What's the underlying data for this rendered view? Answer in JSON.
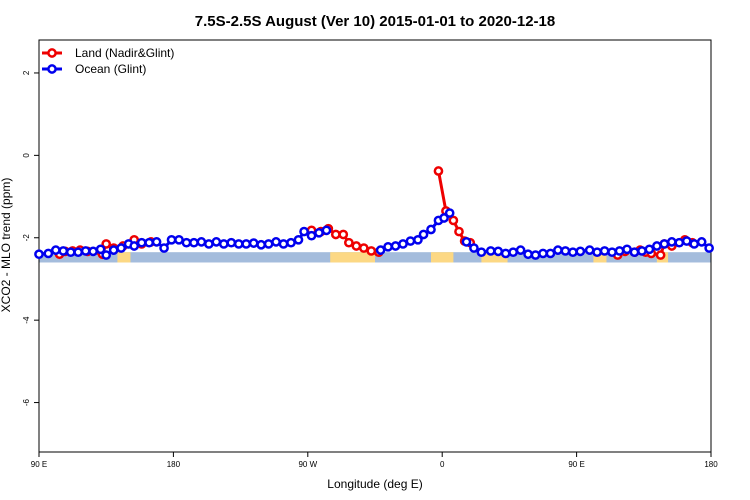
{
  "chart_data": {
    "type": "line",
    "title": "7.5S-2.5S August (Ver 10)   2015-01-01 to 2020-12-18",
    "xlabel": "Longitude (deg E)",
    "ylabel": "XCO2 - MLO trend (ppm)",
    "xlim": [
      90,
      450
    ],
    "ylim": [
      -7.2,
      2.8
    ],
    "x_ticks": [
      {
        "value": 90,
        "label": "90 E"
      },
      {
        "value": 162,
        "label": "180"
      },
      {
        "value": 234,
        "label": "90 W"
      },
      {
        "value": 306,
        "label": "0"
      },
      {
        "value": 378,
        "label": "90 E"
      },
      {
        "value": 450,
        "label": "180"
      }
    ],
    "y_ticks": [
      {
        "value": 2,
        "label": "2"
      },
      {
        "value": 0,
        "label": "0"
      },
      {
        "value": -2,
        "label": "-2"
      },
      {
        "value": -4,
        "label": "-4"
      },
      {
        "value": -6,
        "label": "-6"
      }
    ],
    "legend": [
      {
        "name": "Land (Nadir&Glint)",
        "color": "#ee0000"
      },
      {
        "name": "Ocean (Glint)",
        "color": "#0000ee"
      }
    ],
    "map_band": {
      "y_range": [
        -2.6,
        -2.35
      ],
      "ocean_color": "#a4bcdc",
      "land_color": "#fcd884",
      "land_spans": [
        [
          132,
          139
        ],
        [
          246,
          270
        ],
        [
          300,
          312
        ],
        [
          327,
          341
        ],
        [
          387,
          394
        ],
        [
          421,
          427
        ]
      ]
    },
    "series": [
      {
        "name": "Land (Nadir&Glint)",
        "color": "#ee0000",
        "segments": [
          [
            [
              101,
              -2.4
            ],
            [
              104,
              -2.33
            ],
            [
              108,
              -2.32
            ],
            [
              112,
              -2.3
            ],
            [
              116,
              -2.33
            ],
            [
              124,
              -2.4
            ],
            [
              126,
              -2.15
            ],
            [
              130,
              -2.25
            ],
            [
              135,
              -2.2
            ],
            [
              141,
              -2.05
            ],
            [
              145,
              -2.15
            ],
            [
              150,
              -2.1
            ]
          ],
          [
            [
              236,
              -1.82
            ],
            [
              241,
              -1.85
            ],
            [
              245,
              -1.78
            ],
            [
              249,
              -1.92
            ],
            [
              253,
              -1.92
            ],
            [
              256,
              -2.12
            ],
            [
              260,
              -2.2
            ],
            [
              264,
              -2.25
            ],
            [
              268,
              -2.32
            ],
            [
              272,
              -2.35
            ]
          ],
          [
            [
              304,
              -0.38
            ],
            [
              308,
              -1.35
            ],
            [
              312,
              -1.58
            ],
            [
              315,
              -1.85
            ],
            [
              318,
              -2.08
            ],
            [
              321,
              -2.12
            ]
          ],
          [
            [
              400,
              -2.42
            ],
            [
              404,
              -2.33
            ],
            [
              409,
              -2.35
            ],
            [
              412,
              -2.3
            ],
            [
              415,
              -2.35
            ],
            [
              418,
              -2.38
            ],
            [
              423,
              -2.42
            ],
            [
              425,
              -2.15
            ],
            [
              429,
              -2.2
            ],
            [
              436,
              -2.05
            ],
            [
              440,
              -2.12
            ]
          ]
        ]
      },
      {
        "name": "Ocean (Glint)",
        "color": "#0000ee",
        "segments": [
          [
            [
              90,
              -2.4
            ],
            [
              95,
              -2.38
            ],
            [
              99,
              -2.3
            ],
            [
              103,
              -2.32
            ],
            [
              107,
              -2.35
            ],
            [
              111,
              -2.35
            ],
            [
              115,
              -2.32
            ],
            [
              119,
              -2.33
            ],
            [
              123,
              -2.28
            ],
            [
              126,
              -2.42
            ],
            [
              130,
              -2.3
            ],
            [
              134,
              -2.25
            ],
            [
              138,
              -2.15
            ],
            [
              141,
              -2.2
            ],
            [
              145,
              -2.12
            ],
            [
              149,
              -2.12
            ],
            [
              153,
              -2.1
            ],
            [
              157,
              -2.25
            ],
            [
              161,
              -2.05
            ],
            [
              165,
              -2.05
            ],
            [
              169,
              -2.12
            ],
            [
              173,
              -2.12
            ],
            [
              177,
              -2.1
            ],
            [
              181,
              -2.15
            ],
            [
              185,
              -2.1
            ],
            [
              189,
              -2.15
            ],
            [
              193,
              -2.12
            ],
            [
              197,
              -2.15
            ],
            [
              201,
              -2.15
            ],
            [
              205,
              -2.13
            ],
            [
              209,
              -2.17
            ],
            [
              213,
              -2.15
            ],
            [
              217,
              -2.1
            ],
            [
              221,
              -2.15
            ],
            [
              225,
              -2.12
            ],
            [
              229,
              -2.05
            ],
            [
              232,
              -1.85
            ],
            [
              236,
              -1.95
            ],
            [
              240,
              -1.88
            ],
            [
              244,
              -1.82
            ]
          ],
          [
            [
              273,
              -2.3
            ],
            [
              277,
              -2.22
            ],
            [
              281,
              -2.2
            ],
            [
              285,
              -2.15
            ],
            [
              289,
              -2.08
            ],
            [
              293,
              -2.05
            ],
            [
              296,
              -1.92
            ],
            [
              300,
              -1.8
            ],
            [
              304,
              -1.58
            ],
            [
              307,
              -1.52
            ],
            [
              310,
              -1.4
            ]
          ],
          [
            [
              319,
              -2.1
            ],
            [
              323,
              -2.25
            ],
            [
              327,
              -2.35
            ],
            [
              332,
              -2.32
            ],
            [
              336,
              -2.33
            ],
            [
              340,
              -2.38
            ],
            [
              344,
              -2.35
            ],
            [
              348,
              -2.3
            ],
            [
              352,
              -2.4
            ],
            [
              356,
              -2.42
            ],
            [
              360,
              -2.38
            ],
            [
              364,
              -2.38
            ],
            [
              368,
              -2.3
            ],
            [
              372,
              -2.32
            ],
            [
              376,
              -2.35
            ],
            [
              380,
              -2.33
            ],
            [
              385,
              -2.3
            ],
            [
              389,
              -2.35
            ],
            [
              393,
              -2.32
            ],
            [
              397,
              -2.35
            ],
            [
              401,
              -2.32
            ],
            [
              405,
              -2.28
            ],
            [
              409,
              -2.35
            ],
            [
              413,
              -2.32
            ],
            [
              417,
              -2.28
            ],
            [
              421,
              -2.2
            ],
            [
              425,
              -2.15
            ],
            [
              429,
              -2.1
            ],
            [
              433,
              -2.12
            ],
            [
              437,
              -2.08
            ],
            [
              441,
              -2.15
            ],
            [
              445,
              -2.1
            ],
            [
              449,
              -2.25
            ]
          ]
        ]
      }
    ]
  }
}
